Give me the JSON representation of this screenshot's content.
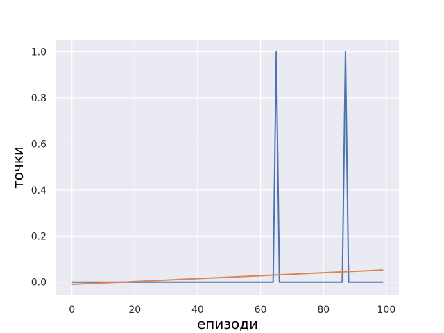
{
  "chart_data": {
    "type": "line",
    "title": "",
    "xlabel": "епизоди",
    "ylabel": "точки",
    "xlim": [
      -5,
      104
    ],
    "ylim": [
      -0.055,
      1.05
    ],
    "xticks": [
      0,
      20,
      40,
      60,
      80,
      100
    ],
    "yticks": [
      0.0,
      0.2,
      0.4,
      0.6,
      0.8,
      1.0
    ],
    "xtick_labels": [
      "0",
      "20",
      "40",
      "60",
      "80",
      "100"
    ],
    "ytick_labels": [
      "0.0",
      "0.2",
      "0.4",
      "0.6",
      "0.8",
      "1.0"
    ],
    "grid": true,
    "background": "#eaeaf2",
    "series": [
      {
        "color": "#4c72b0",
        "x": [
          0,
          64,
          65,
          66,
          86,
          87,
          88,
          99
        ],
        "y": [
          0,
          0,
          1,
          0,
          0,
          1,
          0,
          0
        ]
      },
      {
        "color": "#dd8452",
        "x": [
          0,
          99
        ],
        "y": [
          -0.01,
          0.053
        ]
      }
    ]
  }
}
